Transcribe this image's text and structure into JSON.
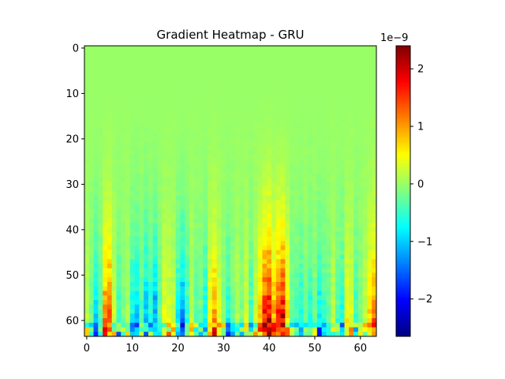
{
  "chart_data": {
    "type": "heatmap",
    "title": "Gradient Heatmap - GRU",
    "xlabel": "",
    "ylabel": "",
    "rows": 64,
    "cols": 64,
    "x_ticks": [
      0,
      10,
      20,
      30,
      40,
      50,
      60
    ],
    "y_ticks": [
      0,
      10,
      20,
      30,
      40,
      50,
      60
    ],
    "y_axis_inverted": true,
    "colormap": "jet",
    "colorbar": {
      "min": -2.65,
      "max": 2.4,
      "ticks": [
        -2,
        -1,
        0,
        1,
        2
      ],
      "exponent_label": "1e−9"
    },
    "value_scale": 1e-09,
    "grid": false,
    "column_gradient_profile_1e-9": [
      0.2,
      -0.3,
      -1.2,
      -0.4,
      1.4,
      1.6,
      0.3,
      -0.6,
      -0.2,
      0.1,
      -1.0,
      -1.2,
      -0.5,
      -1.4,
      -0.8,
      -1.6,
      -0.4,
      0.5,
      0.4,
      0.2,
      -1.0,
      -1.6,
      -0.7,
      0.2,
      -0.4,
      -0.3,
      -0.9,
      0.6,
      1.2,
      0.4,
      -0.2,
      -0.8,
      -0.3,
      0.2,
      -0.2,
      0.4,
      -0.6,
      0.3,
      1.0,
      2.0,
      2.3,
      1.2,
      1.9,
      2.3,
      0.9,
      -0.4,
      -0.5,
      -0.8,
      -0.2,
      -0.8,
      -0.3,
      -1.0,
      -0.6,
      -0.4,
      0.2,
      -0.5,
      -0.8,
      0.6,
      0.4,
      -0.6,
      -0.2,
      0.3,
      0.9,
      1.4
    ]
  }
}
